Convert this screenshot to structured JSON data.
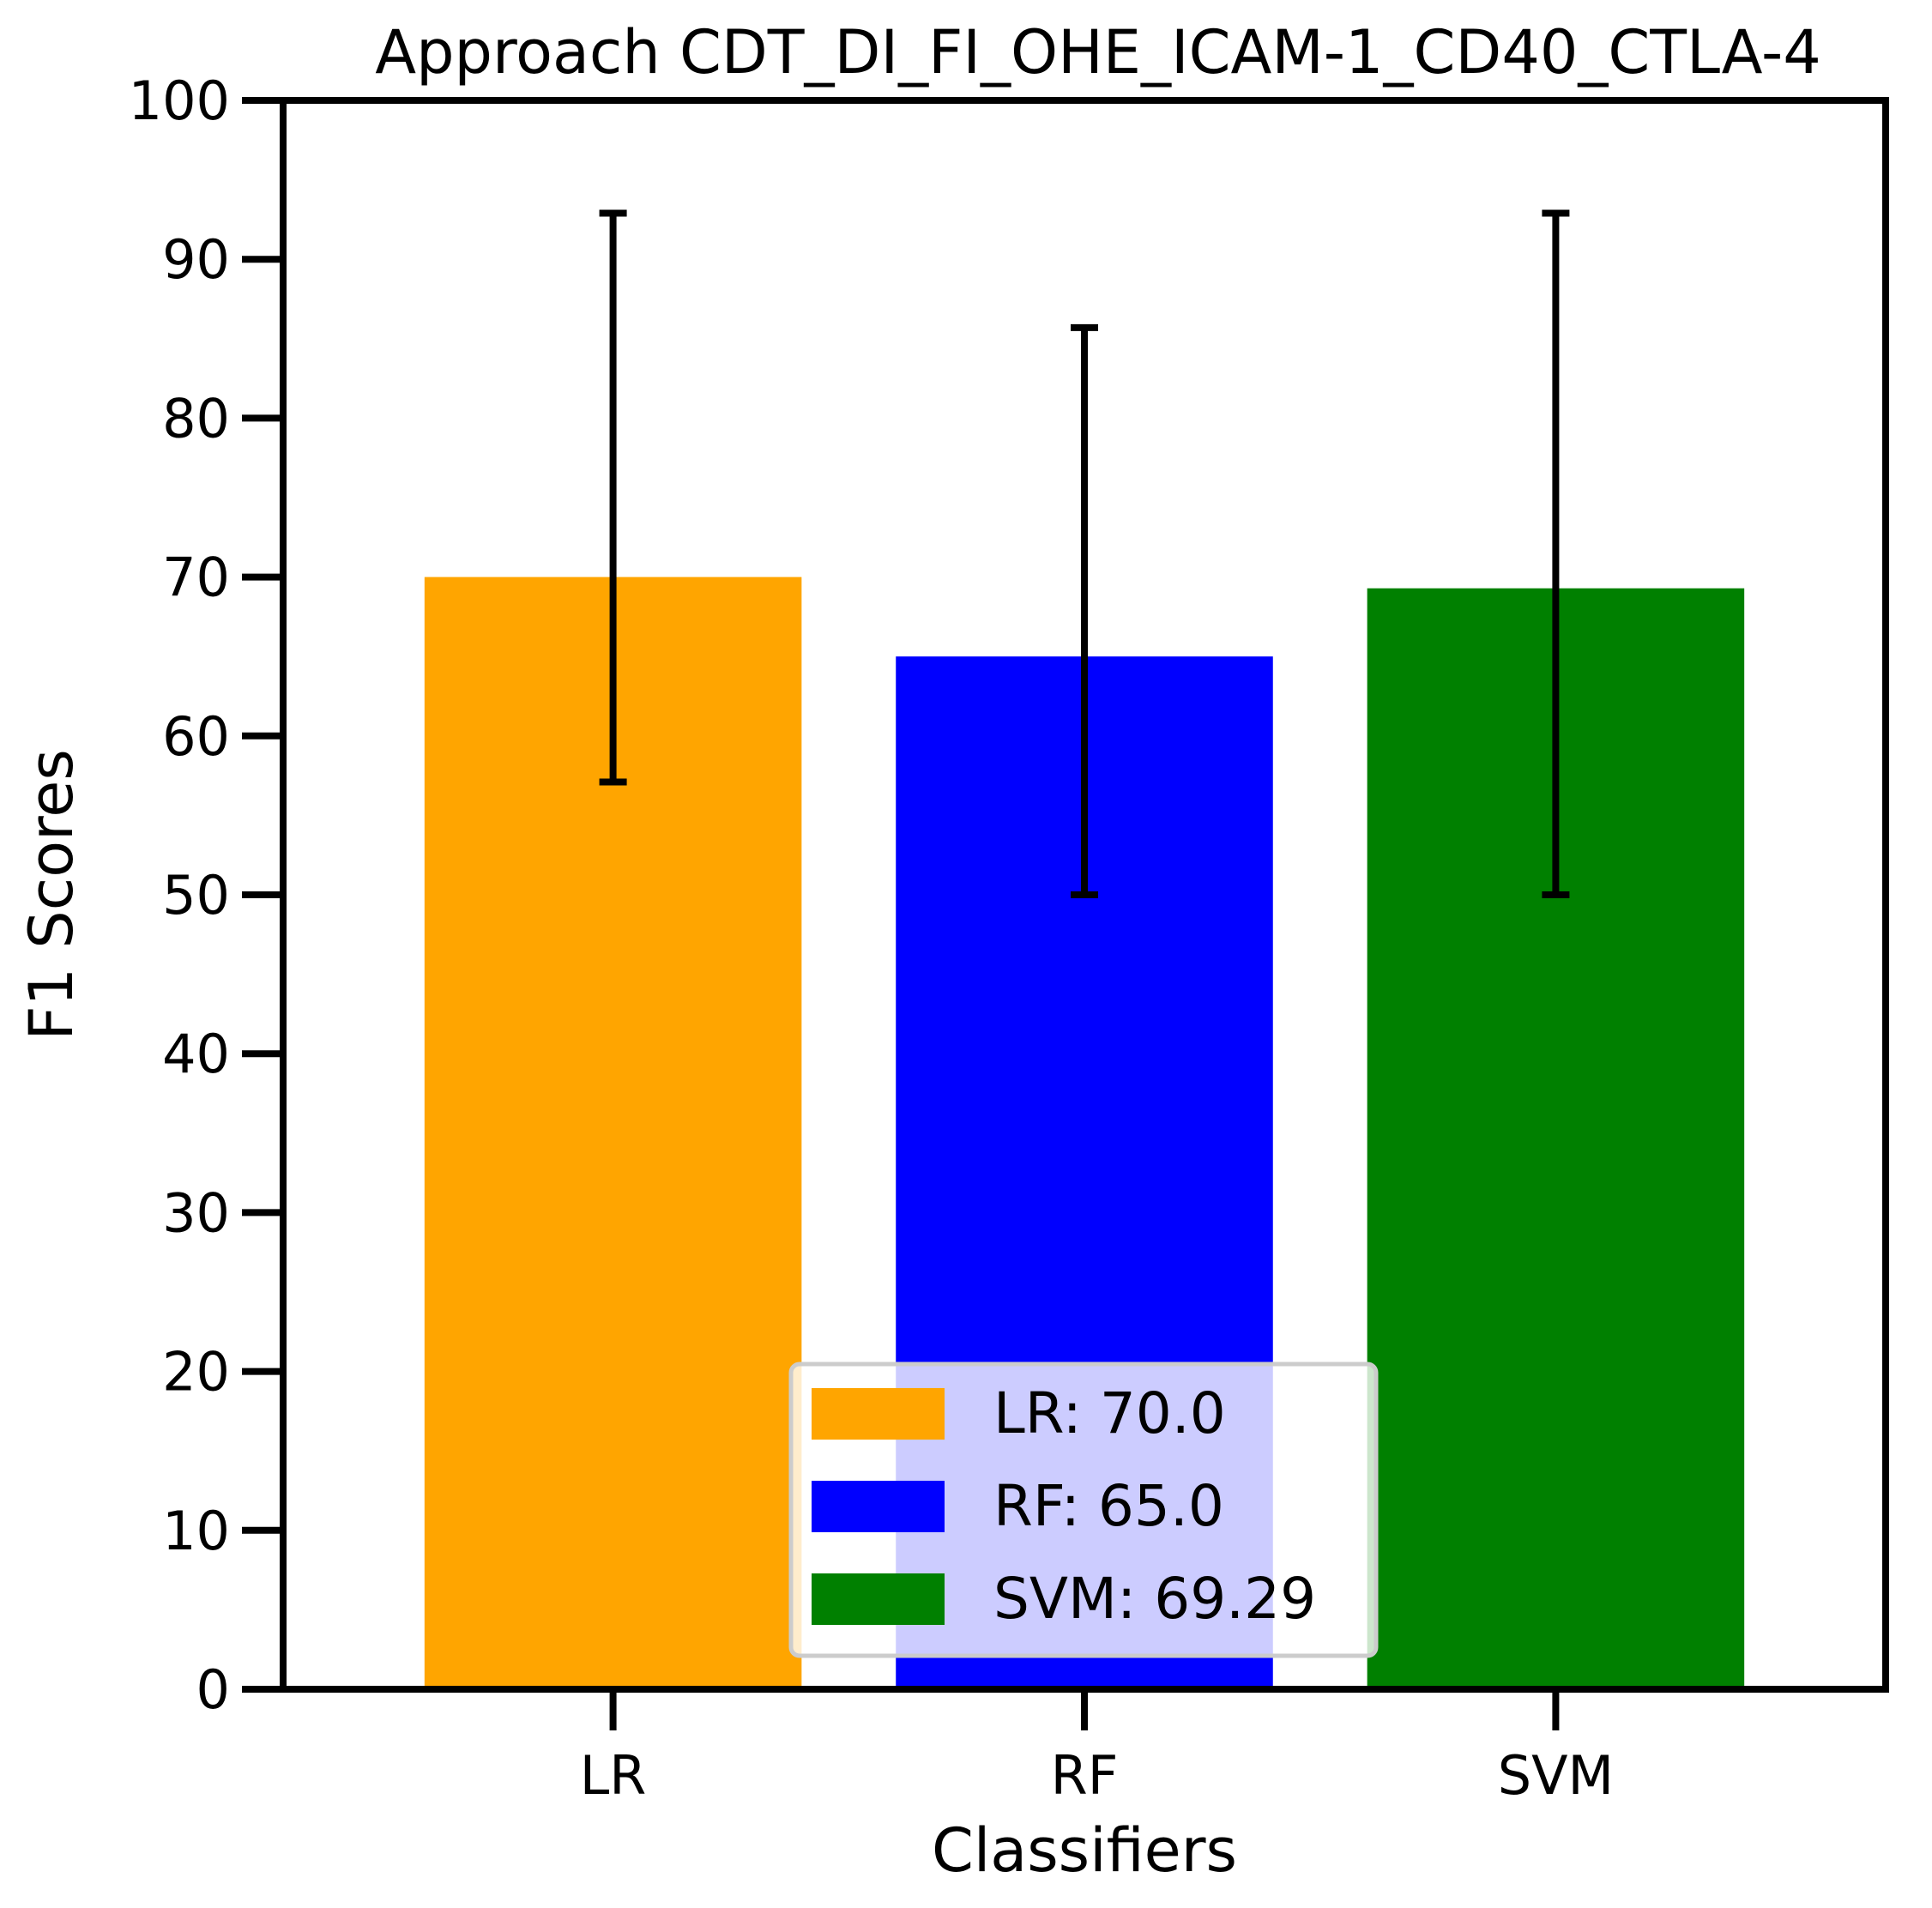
{
  "chart_data": {
    "type": "bar",
    "title": "Approach CDT_DI_FI_OHE_ICAM-1_CD40_CTLA-4",
    "xlabel": "Classifiers",
    "ylabel": "F1 Scores",
    "ylim": [
      0,
      100
    ],
    "yticks": [
      0,
      10,
      20,
      30,
      40,
      50,
      60,
      70,
      80,
      90,
      100
    ],
    "categories": [
      "LR",
      "RF",
      "SVM"
    ],
    "values": [
      70.0,
      65.0,
      69.29
    ],
    "error_low": [
      57.1,
      50.0,
      50.0
    ],
    "error_high": [
      92.9,
      85.7,
      92.9
    ],
    "colors": [
      "#ffa500",
      "#0000ff",
      "#008000"
    ],
    "grid": false,
    "legend": {
      "placement": "lower-center",
      "entries": [
        {
          "label": "LR: 70.0",
          "color": "#ffa500"
        },
        {
          "label": "RF: 65.0",
          "color": "#0000ff"
        },
        {
          "label": "SVM: 69.29",
          "color": "#008000"
        }
      ]
    }
  }
}
